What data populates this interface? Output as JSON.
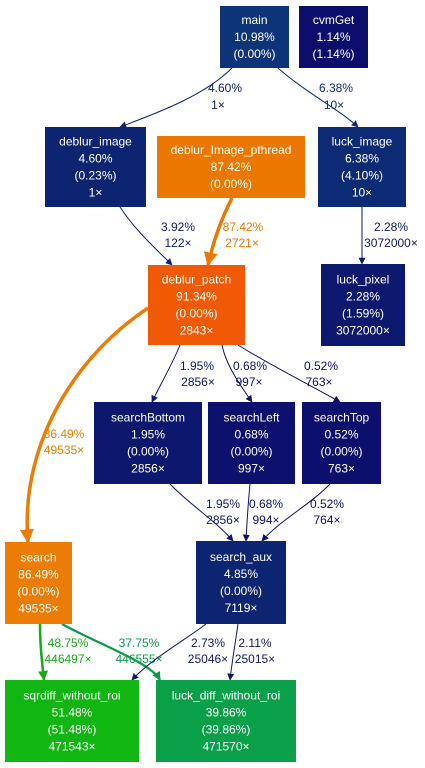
{
  "nodes": {
    "main": {
      "lines": [
        "main",
        "10.98%",
        "(0.00%)"
      ],
      "color": "#0d3478"
    },
    "cvmGet": {
      "lines": [
        "cvmGet",
        "1.14%",
        "(1.14%)"
      ],
      "color": "#0d0d6c"
    },
    "deblur_image": {
      "lines": [
        "deblur_image",
        "4.60%",
        "(0.23%)",
        "1×"
      ],
      "color": "#0d2470"
    },
    "deblur_Image_pthread": {
      "lines": [
        "deblur_Image_pthread",
        "87.42%",
        "(0.00%)"
      ],
      "color": "#ea7800"
    },
    "luck_image": {
      "lines": [
        "luck_image",
        "6.38%",
        "(4.10%)",
        "10×"
      ],
      "color": "#0d2b74"
    },
    "deblur_patch": {
      "lines": [
        "deblur_patch",
        "91.34%",
        "(0.00%)",
        "2843×"
      ],
      "color": "#f05a05"
    },
    "luck_pixel": {
      "lines": [
        "luck_pixel",
        "2.28%",
        "(1.59%)",
        "3072000×"
      ],
      "color": "#0d196e"
    },
    "searchBottom": {
      "lines": [
        "searchBottom",
        "1.95%",
        "(0.00%)",
        "2856×"
      ],
      "color": "#0d176e"
    },
    "searchLeft": {
      "lines": [
        "searchLeft",
        "0.68%",
        "(0.00%)",
        "997×"
      ],
      "color": "#0d106c"
    },
    "searchTop": {
      "lines": [
        "searchTop",
        "0.52%",
        "(0.00%)",
        "763×"
      ],
      "color": "#0d0f6c"
    },
    "search": {
      "lines": [
        "search",
        "86.49%",
        "(0.00%)",
        "49535×"
      ],
      "color": "#eb7c05"
    },
    "search_aux": {
      "lines": [
        "search_aux",
        "4.85%",
        "(0.00%)",
        "7119×"
      ],
      "color": "#0d2470"
    },
    "sqrdiff_without_roi": {
      "lines": [
        "sqrdiff_without_roi",
        "51.48%",
        "(51.48%)",
        "471543×"
      ],
      "color": "#12b612"
    },
    "luck_diff_without_roi": {
      "lines": [
        "luck_diff_without_roi",
        "39.86%",
        "(39.86%)",
        "471570×"
      ],
      "color": "#0aa04a"
    }
  },
  "edges": [
    {
      "from": "main",
      "to": "deblur_image",
      "labels": [
        "4.60%",
        "1×"
      ],
      "color": "#0d2470"
    },
    {
      "from": "main",
      "to": "luck_image",
      "labels": [
        "6.38%",
        "10×"
      ],
      "color": "#0d2b74"
    },
    {
      "from": "deblur_image",
      "to": "deblur_patch",
      "labels": [
        "3.92%",
        "122×"
      ],
      "color": "#0d2070"
    },
    {
      "from": "deblur_Image_pthread",
      "to": "deblur_patch",
      "labels": [
        "87.42%",
        "2721×"
      ],
      "color": "#ea7800"
    },
    {
      "from": "luck_image",
      "to": "luck_pixel",
      "labels": [
        "2.28%",
        "3072000×"
      ],
      "color": "#0d196e"
    },
    {
      "from": "deblur_patch",
      "to": "searchBottom",
      "labels": [
        "1.95%",
        "2856×"
      ],
      "color": "#0d176e"
    },
    {
      "from": "deblur_patch",
      "to": "searchLeft",
      "labels": [
        "0.68%",
        "997×"
      ],
      "color": "#0d106c"
    },
    {
      "from": "deblur_patch",
      "to": "searchTop",
      "labels": [
        "0.52%",
        "763×"
      ],
      "color": "#0d0f6c"
    },
    {
      "from": "deblur_patch",
      "to": "search",
      "labels": [
        "86.49%",
        "49535×"
      ],
      "color": "#eb7c05"
    },
    {
      "from": "searchBottom",
      "to": "search_aux",
      "labels": [
        "1.95%",
        "2856×"
      ],
      "color": "#0d176e"
    },
    {
      "from": "searchLeft",
      "to": "search_aux",
      "labels": [
        "0.68%",
        "994×"
      ],
      "color": "#0d106c"
    },
    {
      "from": "searchTop",
      "to": "search_aux",
      "labels": [
        "0.52%",
        "764×"
      ],
      "color": "#0d0f6c"
    },
    {
      "from": "search",
      "to": "sqrdiff_without_roi",
      "labels": [
        "48.75%",
        "446497×"
      ],
      "color": "#18a818"
    },
    {
      "from": "search",
      "to": "luck_diff_without_roi",
      "labels": [
        "37.75%",
        "446555×"
      ],
      "color": "#0a9a48"
    },
    {
      "from": "search_aux",
      "to": "sqrdiff_without_roi",
      "labels": [
        "2.73%",
        "25046×"
      ],
      "color": "#0d1a6e"
    },
    {
      "from": "search_aux",
      "to": "luck_diff_without_roi",
      "labels": [
        "2.11%",
        "25015×"
      ],
      "color": "#0d186e"
    }
  ]
}
